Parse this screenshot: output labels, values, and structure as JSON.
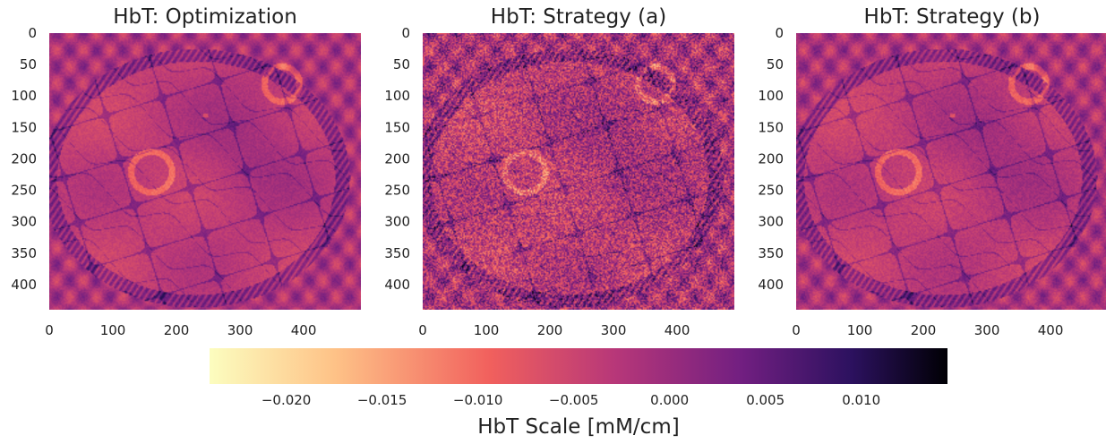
{
  "chart_data": [
    {
      "type": "heatmap",
      "title": "HbT: Optimization",
      "x_ticks": [
        0,
        100,
        200,
        300,
        400
      ],
      "y_ticks": [
        0,
        50,
        100,
        150,
        200,
        250,
        300,
        350,
        400
      ],
      "xlim": [
        0,
        490
      ],
      "ylim": [
        0,
        440
      ],
      "rings": [
        {
          "cx": 365,
          "cy": 80,
          "r": 28
        },
        {
          "cx": 160,
          "cy": 220,
          "r": 32
        }
      ],
      "noise": 0.04
    },
    {
      "type": "heatmap",
      "title": "HbT: Strategy (a)",
      "x_ticks": [
        0,
        100,
        200,
        300,
        400
      ],
      "y_ticks": [
        0,
        50,
        100,
        150,
        200,
        250,
        300,
        350,
        400
      ],
      "xlim": [
        0,
        490
      ],
      "ylim": [
        0,
        440
      ],
      "rings": [
        {
          "cx": 365,
          "cy": 80,
          "r": 28
        },
        {
          "cx": 160,
          "cy": 220,
          "r": 32
        }
      ],
      "noise": 0.2
    },
    {
      "type": "heatmap",
      "title": "HbT: Strategy (b)",
      "x_ticks": [
        0,
        100,
        200,
        300,
        400
      ],
      "y_ticks": [
        0,
        50,
        100,
        150,
        200,
        250,
        300,
        350,
        400
      ],
      "xlim": [
        0,
        490
      ],
      "ylim": [
        0,
        440
      ],
      "rings": [
        {
          "cx": 365,
          "cy": 80,
          "r": 28
        },
        {
          "cx": 160,
          "cy": 220,
          "r": 32
        }
      ],
      "noise": 0.05
    }
  ],
  "colorbar": {
    "label": "HbT Scale [mM/cm]",
    "range": [
      -0.024,
      0.0145
    ],
    "ticks": [
      "−0.020",
      "−0.015",
      "−0.010",
      "−0.005",
      "0.000",
      "0.005",
      "0.010"
    ],
    "tick_values": [
      -0.02,
      -0.015,
      -0.01,
      -0.005,
      0,
      0.005,
      0.01
    ],
    "colormap": "magma_r",
    "colors": [
      "#fcfdbf",
      "#fec287",
      "#f1605d",
      "#b73779",
      "#721f81",
      "#2c115f",
      "#000004"
    ]
  }
}
